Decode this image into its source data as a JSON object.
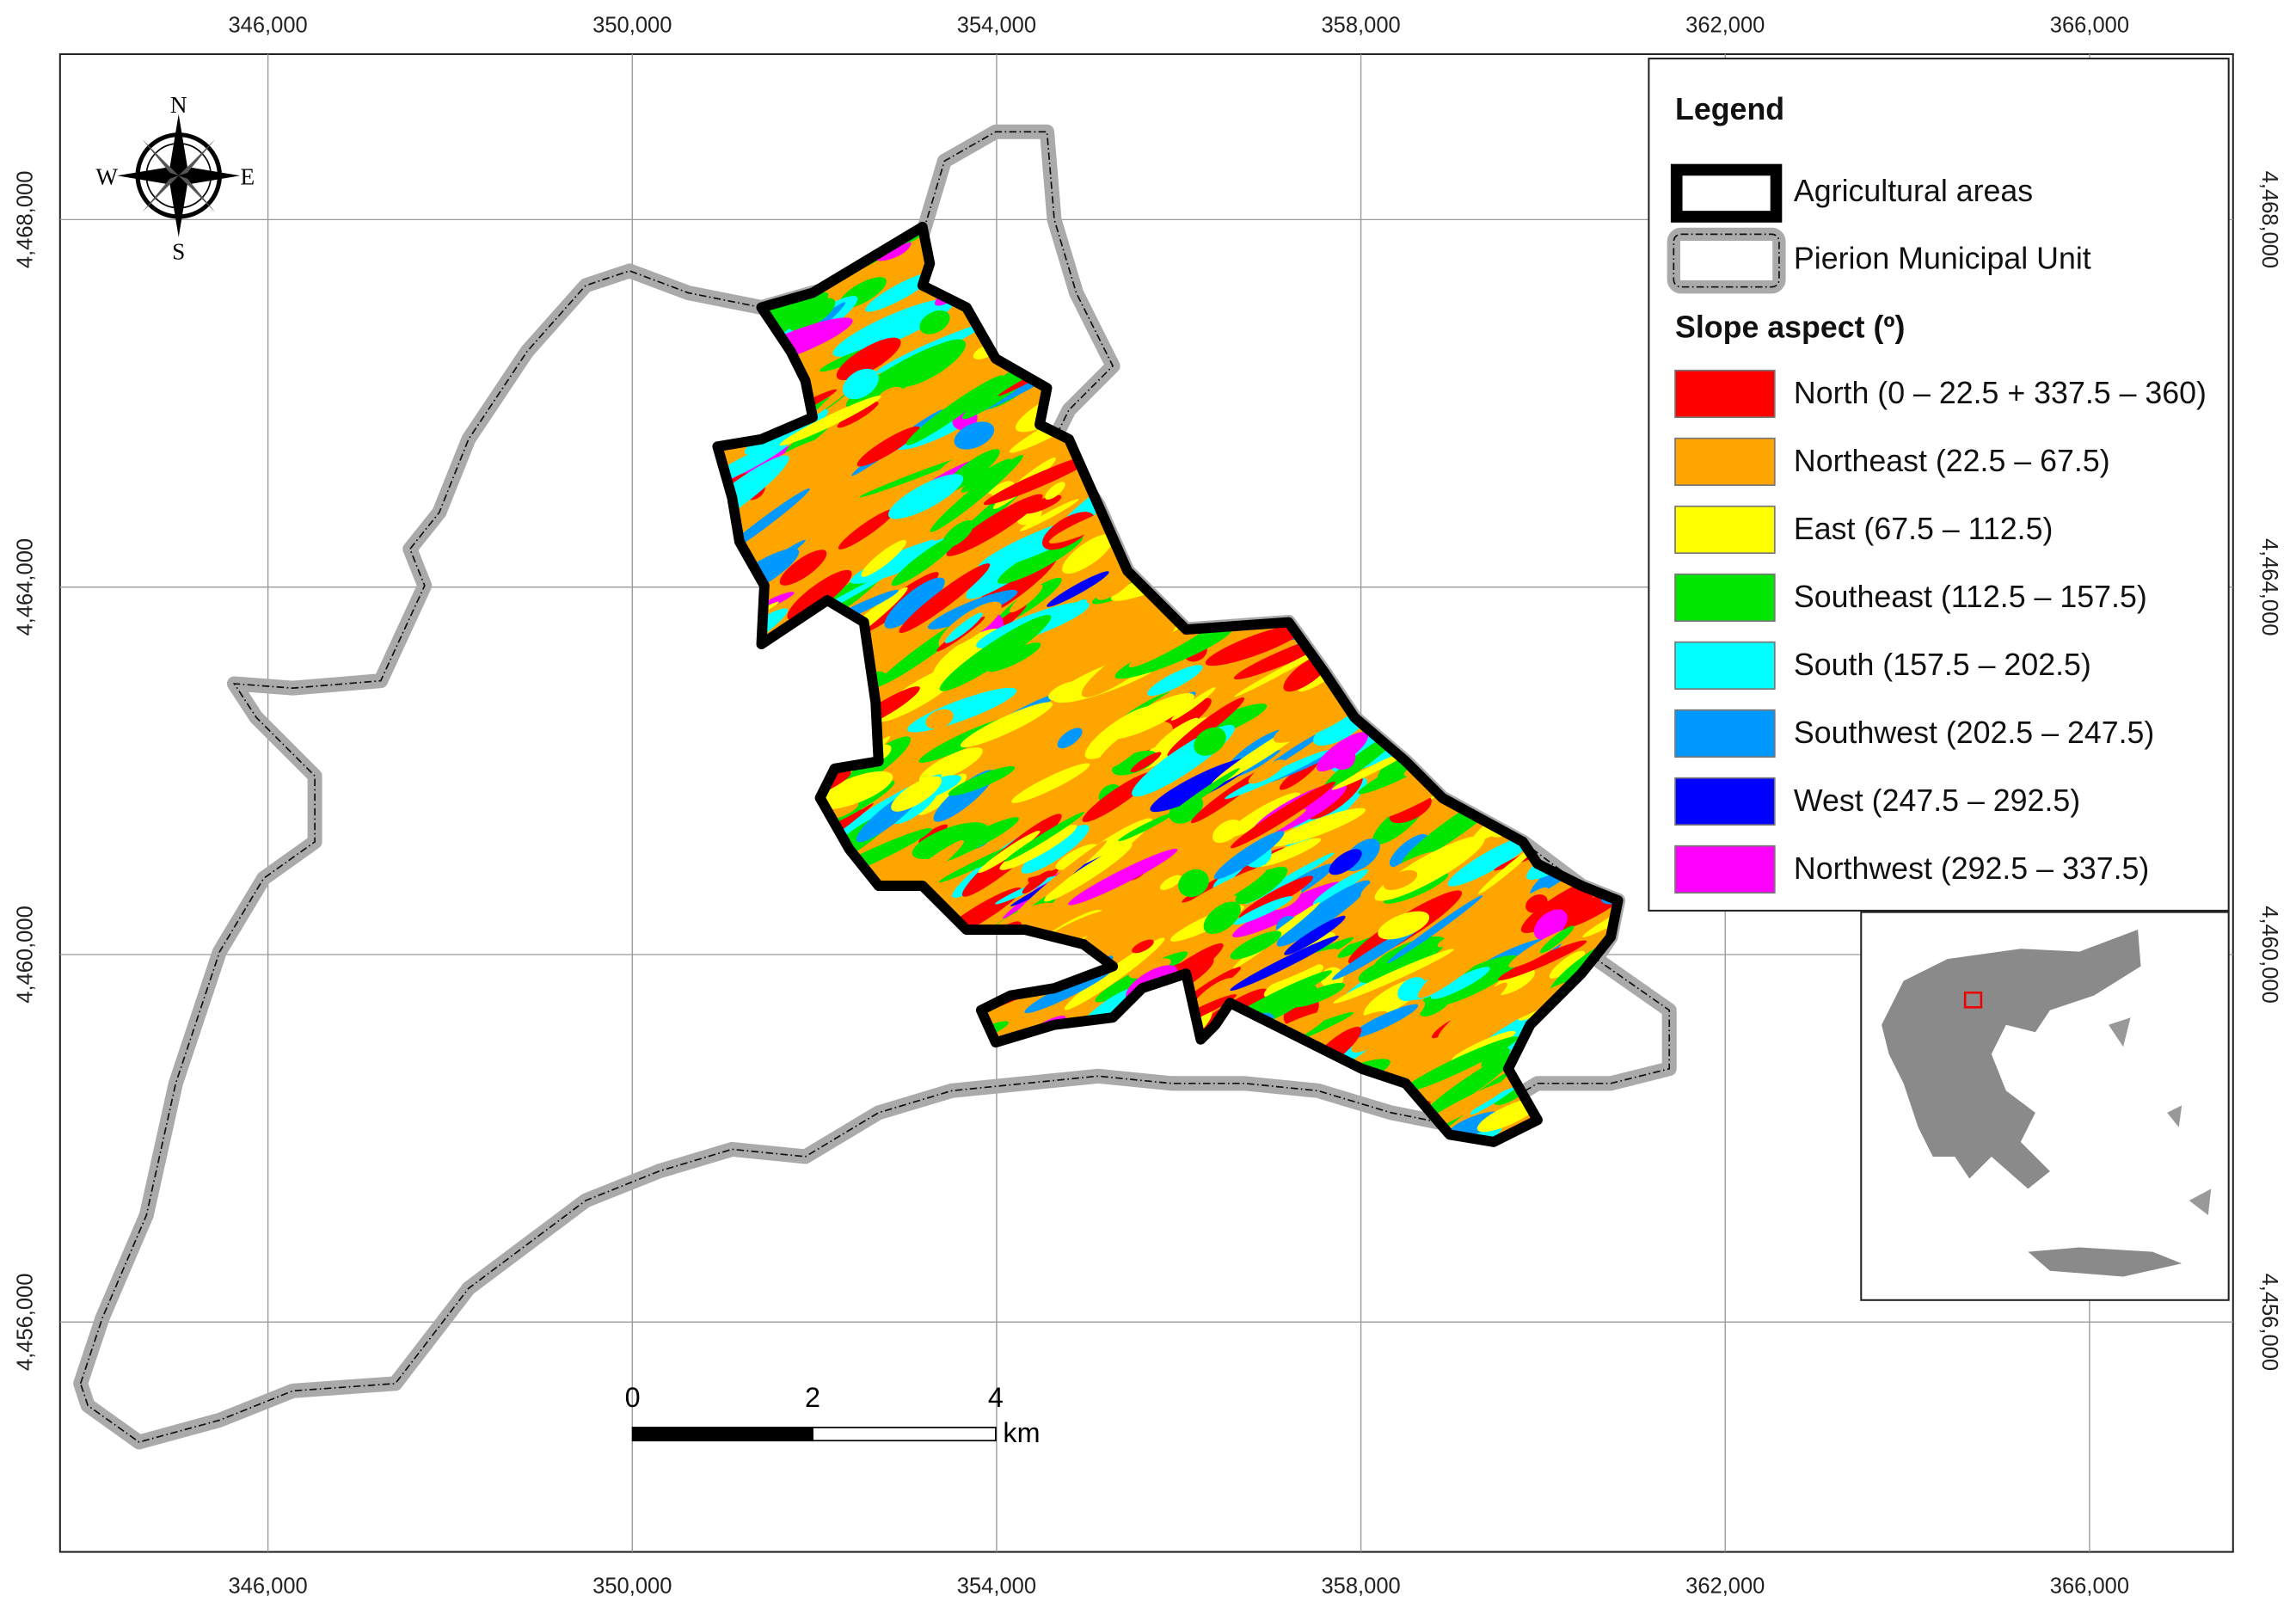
{
  "map": {
    "x_ticks": [
      "346,000",
      "350,000",
      "354,000",
      "358,000",
      "362,000",
      "366,000"
    ],
    "y_ticks": [
      "4,468,000",
      "4,464,000",
      "4,460,000",
      "4,456,000"
    ],
    "compass": {
      "n": "N",
      "e": "E",
      "s": "S",
      "w": "W"
    },
    "legend": {
      "title": "Legend",
      "agricultural_areas": "Agricultural areas",
      "municipal_unit": "Pierion Municipal Unit",
      "slope_title": "Slope aspect (º)",
      "classes": [
        {
          "label": "North (0 – 22.5 + 337.5 – 360)",
          "color": "#ff0000"
        },
        {
          "label": "Northeast (22.5 – 67.5)",
          "color": "#ffa500"
        },
        {
          "label": "East (67.5 – 112.5)",
          "color": "#ffff00"
        },
        {
          "label": "Southeast (112.5 – 157.5)",
          "color": "#00e600"
        },
        {
          "label": "South (157.5 – 202.5)",
          "color": "#00ffff"
        },
        {
          "label": "Southwest (202.5 – 247.5)",
          "color": "#0099ff"
        },
        {
          "label": "West (247.5 – 292.5)",
          "color": "#0000ff"
        },
        {
          "label": "Northwest (292.5 – 337.5)",
          "color": "#ff00ff"
        }
      ]
    },
    "scale_bar": {
      "labels": [
        "0",
        "2",
        "4"
      ],
      "unit": "km"
    }
  }
}
